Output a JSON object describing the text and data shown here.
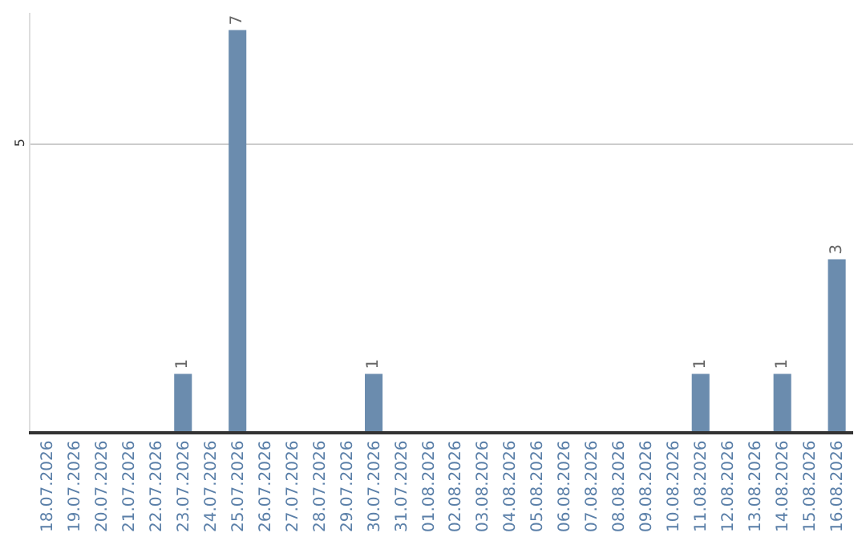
{
  "chart_data": {
    "type": "bar",
    "categories": [
      "18.07.2026",
      "19.07.2026",
      "20.07.2026",
      "21.07.2026",
      "22.07.2026",
      "23.07.2026",
      "24.07.2026",
      "25.07.2026",
      "26.07.2026",
      "27.07.2026",
      "28.07.2026",
      "29.07.2026",
      "30.07.2026",
      "31.07.2026",
      "01.08.2026",
      "02.08.2026",
      "03.08.2026",
      "04.08.2026",
      "05.08.2026",
      "06.08.2026",
      "07.08.2026",
      "08.08.2026",
      "09.08.2026",
      "10.08.2026",
      "11.08.2026",
      "12.08.2026",
      "13.08.2026",
      "14.08.2026",
      "15.08.2026",
      "16.08.2026"
    ],
    "values": [
      0,
      0,
      0,
      0,
      0,
      1,
      0,
      7,
      0,
      0,
      0,
      0,
      1,
      0,
      0,
      0,
      0,
      0,
      0,
      0,
      0,
      0,
      0,
      0,
      1,
      0,
      0,
      1,
      0,
      3
    ],
    "value_labels": [
      null,
      null,
      null,
      null,
      null,
      "1",
      null,
      "7",
      null,
      null,
      null,
      null,
      "1",
      null,
      null,
      null,
      null,
      null,
      null,
      null,
      null,
      null,
      null,
      null,
      "1",
      null,
      null,
      "1",
      null,
      "3"
    ],
    "color": "#6b8cae",
    "ylim": [
      0,
      7.3
    ],
    "yticks": [
      5
    ],
    "grid": "y",
    "legend": false
  }
}
